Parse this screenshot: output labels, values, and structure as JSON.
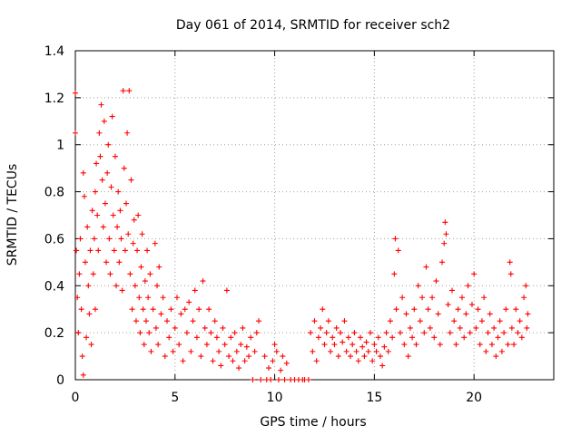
{
  "chart_data": {
    "type": "scatter",
    "title": "Day 061 of 2014, SRMTID for receiver sch2",
    "xlabel": "GPS time / hours",
    "ylabel": "SRMTID / TECUs",
    "xlim": [
      0,
      24
    ],
    "ylim": [
      0,
      1.4
    ],
    "xticks": [
      0,
      5,
      10,
      15,
      20
    ],
    "xtick_labels": [
      "0",
      "5",
      "10",
      "15",
      "20"
    ],
    "yticks": [
      0,
      0.2,
      0.4,
      0.6,
      0.8,
      1.0,
      1.2,
      1.4
    ],
    "ytick_labels": [
      "0",
      "0.2",
      "0.4",
      "0.6",
      "0.8",
      "1",
      "1.2",
      "1.4"
    ],
    "grid": true,
    "marker": "+",
    "color": "#ff0000",
    "series": [
      {
        "name": "sch2",
        "points": [
          [
            0.0,
            1.22
          ],
          [
            0.0,
            1.05
          ],
          [
            0.05,
            0.55
          ],
          [
            0.1,
            0.35
          ],
          [
            0.15,
            0.2
          ],
          [
            0.2,
            0.45
          ],
          [
            0.25,
            0.6
          ],
          [
            0.3,
            0.3
          ],
          [
            0.35,
            0.1
          ],
          [
            0.4,
            0.02
          ],
          [
            0.4,
            0.88
          ],
          [
            0.45,
            0.78
          ],
          [
            0.5,
            0.5
          ],
          [
            0.55,
            0.18
          ],
          [
            0.6,
            0.65
          ],
          [
            0.65,
            0.4
          ],
          [
            0.7,
            0.28
          ],
          [
            0.75,
            0.55
          ],
          [
            0.8,
            0.15
          ],
          [
            0.85,
            0.72
          ],
          [
            0.9,
            0.45
          ],
          [
            0.95,
            0.6
          ],
          [
            1.0,
            0.3
          ],
          [
            1.0,
            0.8
          ],
          [
            1.05,
            0.92
          ],
          [
            1.1,
            0.7
          ],
          [
            1.15,
            0.55
          ],
          [
            1.2,
            1.05
          ],
          [
            1.25,
            0.95
          ],
          [
            1.3,
            1.17
          ],
          [
            1.35,
            0.85
          ],
          [
            1.4,
            0.65
          ],
          [
            1.45,
            1.1
          ],
          [
            1.5,
            0.75
          ],
          [
            1.55,
            0.5
          ],
          [
            1.6,
            0.88
          ],
          [
            1.65,
            1.0
          ],
          [
            1.7,
            0.6
          ],
          [
            1.75,
            0.45
          ],
          [
            1.8,
            0.82
          ],
          [
            1.85,
            1.12
          ],
          [
            1.9,
            0.7
          ],
          [
            1.95,
            0.55
          ],
          [
            2.0,
            0.95
          ],
          [
            2.05,
            0.4
          ],
          [
            2.1,
            0.65
          ],
          [
            2.15,
            0.8
          ],
          [
            2.2,
            0.5
          ],
          [
            2.25,
            0.72
          ],
          [
            2.3,
            0.6
          ],
          [
            2.35,
            0.38
          ],
          [
            2.4,
            1.23
          ],
          [
            2.45,
            0.9
          ],
          [
            2.5,
            0.55
          ],
          [
            2.55,
            0.75
          ],
          [
            2.6,
            1.05
          ],
          [
            2.65,
            0.62
          ],
          [
            2.7,
            1.23
          ],
          [
            2.75,
            0.45
          ],
          [
            2.8,
            0.85
          ],
          [
            2.85,
            0.3
          ],
          [
            2.9,
            0.58
          ],
          [
            2.95,
            0.68
          ],
          [
            3.0,
            0.4
          ],
          [
            3.05,
            0.25
          ],
          [
            3.1,
            0.55
          ],
          [
            3.15,
            0.7
          ],
          [
            3.2,
            0.35
          ],
          [
            3.25,
            0.2
          ],
          [
            3.3,
            0.48
          ],
          [
            3.35,
            0.62
          ],
          [
            3.4,
            0.3
          ],
          [
            3.45,
            0.15
          ],
          [
            3.5,
            0.42
          ],
          [
            3.55,
            0.25
          ],
          [
            3.6,
            0.55
          ],
          [
            3.65,
            0.35
          ],
          [
            3.7,
            0.2
          ],
          [
            3.75,
            0.45
          ],
          [
            3.8,
            0.12
          ],
          [
            3.9,
            0.3
          ],
          [
            4.0,
            0.58
          ],
          [
            4.05,
            0.22
          ],
          [
            4.1,
            0.4
          ],
          [
            4.15,
            0.15
          ],
          [
            4.2,
            0.48
          ],
          [
            4.3,
            0.28
          ],
          [
            4.4,
            0.35
          ],
          [
            4.5,
            0.1
          ],
          [
            4.6,
            0.25
          ],
          [
            4.7,
            0.18
          ],
          [
            4.8,
            0.3
          ],
          [
            4.9,
            0.12
          ],
          [
            5.0,
            0.22
          ],
          [
            5.1,
            0.35
          ],
          [
            5.2,
            0.15
          ],
          [
            5.3,
            0.28
          ],
          [
            5.4,
            0.08
          ],
          [
            5.5,
            0.3
          ],
          [
            5.6,
            0.2
          ],
          [
            5.7,
            0.33
          ],
          [
            5.8,
            0.12
          ],
          [
            5.9,
            0.25
          ],
          [
            6.0,
            0.38
          ],
          [
            6.1,
            0.18
          ],
          [
            6.2,
            0.3
          ],
          [
            6.3,
            0.1
          ],
          [
            6.4,
            0.42
          ],
          [
            6.5,
            0.22
          ],
          [
            6.6,
            0.15
          ],
          [
            6.7,
            0.3
          ],
          [
            6.8,
            0.2
          ],
          [
            6.9,
            0.08
          ],
          [
            7.0,
            0.25
          ],
          [
            7.1,
            0.18
          ],
          [
            7.2,
            0.12
          ],
          [
            7.3,
            0.06
          ],
          [
            7.4,
            0.22
          ],
          [
            7.5,
            0.15
          ],
          [
            7.6,
            0.38
          ],
          [
            7.7,
            0.1
          ],
          [
            7.8,
            0.18
          ],
          [
            7.9,
            0.08
          ],
          [
            8.0,
            0.2
          ],
          [
            8.1,
            0.12
          ],
          [
            8.2,
            0.05
          ],
          [
            8.3,
            0.15
          ],
          [
            8.4,
            0.22
          ],
          [
            8.5,
            0.08
          ],
          [
            8.6,
            0.14
          ],
          [
            8.7,
            0.1
          ],
          [
            8.8,
            0.18
          ],
          [
            8.9,
            0.0
          ],
          [
            9.0,
            0.12
          ],
          [
            9.1,
            0.2
          ],
          [
            9.2,
            0.25
          ],
          [
            9.3,
            0.0
          ],
          [
            9.5,
            0.1
          ],
          [
            9.6,
            0.0
          ],
          [
            9.7,
            0.05
          ],
          [
            9.8,
            0.0
          ],
          [
            9.9,
            0.08
          ],
          [
            10.0,
            0.15
          ],
          [
            10.1,
            0.12
          ],
          [
            10.2,
            0.0
          ],
          [
            10.3,
            0.04
          ],
          [
            10.4,
            0.1
          ],
          [
            10.5,
            0.0
          ],
          [
            10.6,
            0.07
          ],
          [
            10.8,
            0.0
          ],
          [
            11.0,
            0.0
          ],
          [
            11.2,
            0.0
          ],
          [
            11.4,
            0.0
          ],
          [
            11.5,
            0.0
          ],
          [
            11.7,
            0.0
          ],
          [
            11.8,
            0.2
          ],
          [
            11.9,
            0.12
          ],
          [
            12.0,
            0.25
          ],
          [
            12.1,
            0.08
          ],
          [
            12.2,
            0.18
          ],
          [
            12.3,
            0.22
          ],
          [
            12.4,
            0.3
          ],
          [
            12.5,
            0.15
          ],
          [
            12.6,
            0.2
          ],
          [
            12.7,
            0.25
          ],
          [
            12.8,
            0.12
          ],
          [
            12.9,
            0.18
          ],
          [
            13.0,
            0.15
          ],
          [
            13.1,
            0.22
          ],
          [
            13.2,
            0.1
          ],
          [
            13.3,
            0.2
          ],
          [
            13.4,
            0.16
          ],
          [
            13.5,
            0.25
          ],
          [
            13.6,
            0.12
          ],
          [
            13.7,
            0.18
          ],
          [
            13.8,
            0.1
          ],
          [
            13.9,
            0.15
          ],
          [
            14.0,
            0.2
          ],
          [
            14.1,
            0.12
          ],
          [
            14.2,
            0.08
          ],
          [
            14.3,
            0.18
          ],
          [
            14.4,
            0.14
          ],
          [
            14.5,
            0.1
          ],
          [
            14.6,
            0.16
          ],
          [
            14.7,
            0.12
          ],
          [
            14.8,
            0.2
          ],
          [
            14.9,
            0.08
          ],
          [
            15.0,
            0.15
          ],
          [
            15.1,
            0.12
          ],
          [
            15.2,
            0.18
          ],
          [
            15.3,
            0.1
          ],
          [
            15.4,
            0.06
          ],
          [
            15.5,
            0.14
          ],
          [
            15.6,
            0.2
          ],
          [
            15.7,
            0.12
          ],
          [
            15.8,
            0.25
          ],
          [
            15.9,
            0.18
          ],
          [
            16.0,
            0.45
          ],
          [
            16.05,
            0.6
          ],
          [
            16.1,
            0.3
          ],
          [
            16.2,
            0.55
          ],
          [
            16.3,
            0.2
          ],
          [
            16.4,
            0.35
          ],
          [
            16.5,
            0.15
          ],
          [
            16.6,
            0.28
          ],
          [
            16.7,
            0.1
          ],
          [
            16.8,
            0.22
          ],
          [
            16.9,
            0.18
          ],
          [
            17.0,
            0.3
          ],
          [
            17.1,
            0.15
          ],
          [
            17.2,
            0.4
          ],
          [
            17.3,
            0.25
          ],
          [
            17.4,
            0.35
          ],
          [
            17.5,
            0.2
          ],
          [
            17.6,
            0.48
          ],
          [
            17.7,
            0.3
          ],
          [
            17.8,
            0.22
          ],
          [
            17.9,
            0.35
          ],
          [
            18.0,
            0.18
          ],
          [
            18.1,
            0.42
          ],
          [
            18.2,
            0.28
          ],
          [
            18.3,
            0.15
          ],
          [
            18.4,
            0.5
          ],
          [
            18.5,
            0.58
          ],
          [
            18.55,
            0.67
          ],
          [
            18.6,
            0.62
          ],
          [
            18.7,
            0.32
          ],
          [
            18.8,
            0.2
          ],
          [
            18.9,
            0.38
          ],
          [
            19.0,
            0.25
          ],
          [
            19.1,
            0.15
          ],
          [
            19.2,
            0.3
          ],
          [
            19.3,
            0.22
          ],
          [
            19.4,
            0.35
          ],
          [
            19.5,
            0.18
          ],
          [
            19.6,
            0.28
          ],
          [
            19.7,
            0.4
          ],
          [
            19.8,
            0.2
          ],
          [
            19.9,
            0.32
          ],
          [
            20.0,
            0.45
          ],
          [
            20.1,
            0.22
          ],
          [
            20.2,
            0.3
          ],
          [
            20.3,
            0.15
          ],
          [
            20.4,
            0.25
          ],
          [
            20.5,
            0.35
          ],
          [
            20.6,
            0.12
          ],
          [
            20.7,
            0.2
          ],
          [
            20.8,
            0.28
          ],
          [
            20.9,
            0.15
          ],
          [
            21.0,
            0.22
          ],
          [
            21.1,
            0.1
          ],
          [
            21.2,
            0.18
          ],
          [
            21.3,
            0.25
          ],
          [
            21.4,
            0.12
          ],
          [
            21.5,
            0.2
          ],
          [
            21.6,
            0.3
          ],
          [
            21.7,
            0.15
          ],
          [
            21.8,
            0.5
          ],
          [
            21.85,
            0.45
          ],
          [
            21.9,
            0.22
          ],
          [
            22.0,
            0.15
          ],
          [
            22.1,
            0.3
          ],
          [
            22.2,
            0.2
          ],
          [
            22.3,
            0.25
          ],
          [
            22.4,
            0.18
          ],
          [
            22.5,
            0.35
          ],
          [
            22.6,
            0.4
          ],
          [
            22.65,
            0.22
          ],
          [
            22.7,
            0.28
          ]
        ]
      }
    ]
  }
}
